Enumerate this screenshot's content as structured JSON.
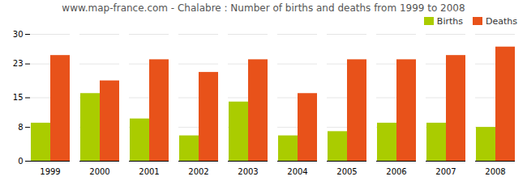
{
  "chart_data": {
    "type": "bar",
    "title": "www.map-france.com - Chalabre : Number of births and deaths from 1999 to 2008",
    "categories": [
      "1999",
      "2000",
      "2001",
      "2002",
      "2003",
      "2004",
      "2005",
      "2006",
      "2007",
      "2008"
    ],
    "series": [
      {
        "name": "Births",
        "color": "#aacc00",
        "values": [
          9,
          16,
          10,
          6,
          14,
          6,
          7,
          9,
          9,
          8
        ]
      },
      {
        "name": "Deaths",
        "color": "#e8521a",
        "values": [
          25,
          19,
          24,
          21,
          24,
          16,
          24,
          24,
          25,
          27
        ]
      }
    ],
    "ylim": [
      0,
      30
    ],
    "yticks": [
      0,
      8,
      15,
      23,
      30
    ],
    "grid": true,
    "legend": "upper right"
  }
}
